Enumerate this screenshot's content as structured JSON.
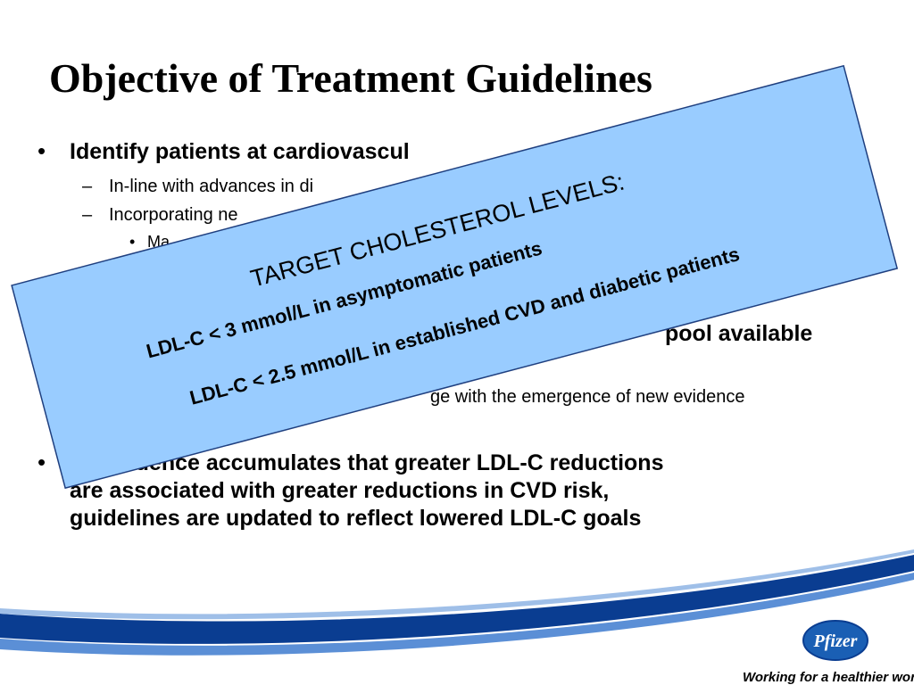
{
  "slide": {
    "title": "Objective of Treatment Guidelines",
    "bullets": [
      {
        "text": "Identify patients at cardiovascul",
        "level": 1
      },
      {
        "text": "In-line with advances in di",
        "level": 2
      },
      {
        "text": "Incorporating ne",
        "level": 2
      },
      {
        "text": "Ma",
        "level": 3
      },
      {
        "text": "pool available",
        "level": 1
      },
      {
        "text": "ge with the emergence of new evidence",
        "level": 2
      }
    ],
    "final_bullet": [
      "As evidence accumulates that greater LDL-C reductions",
      "are associated with greater reductions in CVD risk,",
      "guidelines are updated to reflect lowered LDL-C goals"
    ],
    "callout": {
      "heading": "TARGET CHOLESTEROL LEVELS:",
      "lines": [
        "LDL-C < 3 mmol/L in asymptomatic patients",
        "LDL-C < 2.5 mmol/L in established CVD and diabetic patients"
      ]
    },
    "footer": {
      "logo": "Pfizer",
      "tagline": "Working for a healthier world"
    }
  }
}
